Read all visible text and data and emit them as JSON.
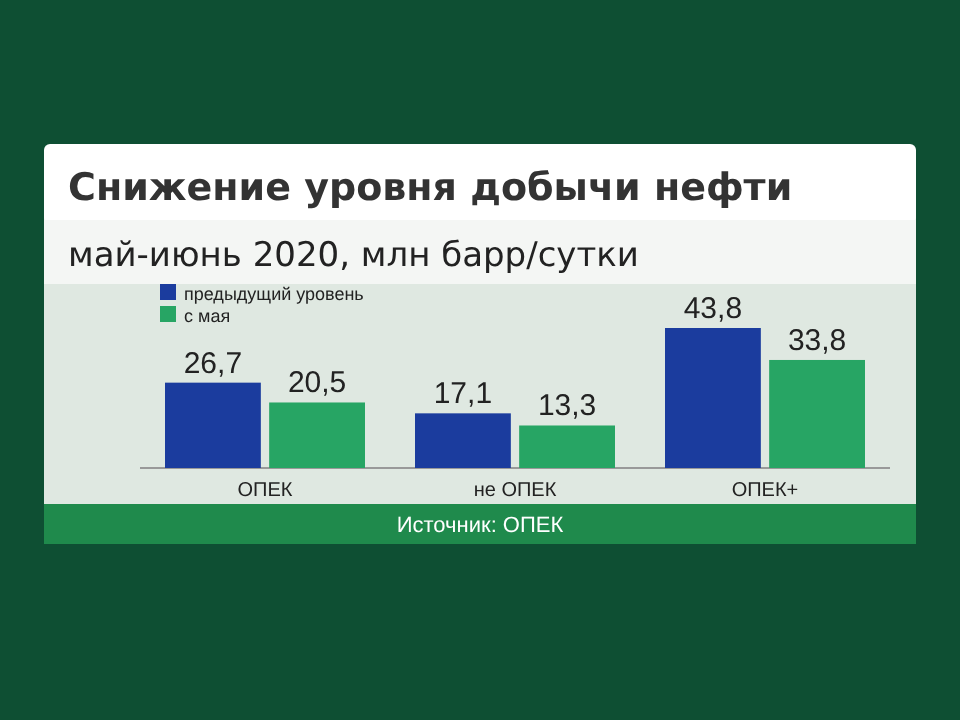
{
  "chart_data": {
    "type": "bar",
    "title": "Снижение уровня добычи нефти",
    "subtitle": "май-июнь 2020,  млн барр/сутки",
    "categories": [
      "ОПЕК",
      "не ОПЕК",
      "ОПЕК+"
    ],
    "series": [
      {
        "name": "предыдущий уровень",
        "color": "#1b3c9e",
        "values": [
          26.7,
          17.1,
          43.8
        ],
        "value_labels": [
          "26,7",
          "17,1",
          "43,8"
        ]
      },
      {
        "name": "с мая",
        "color": "#27a564",
        "values": [
          20.5,
          13.3,
          33.8
        ],
        "value_labels": [
          "20,5",
          "13,3",
          "33,8"
        ]
      }
    ],
    "legend": "top left",
    "annotations": [
      "Источник: ОПЕК"
    ]
  }
}
